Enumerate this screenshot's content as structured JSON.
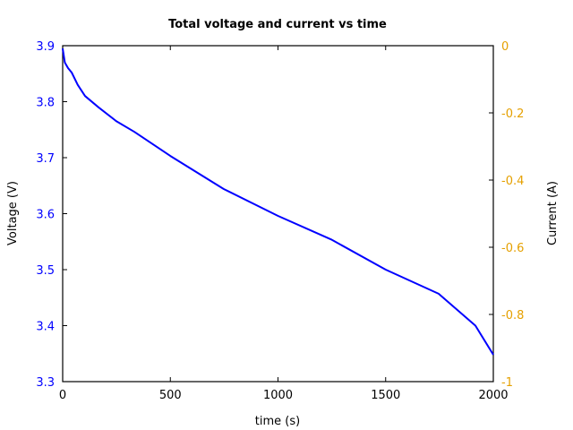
{
  "chart_data": {
    "type": "line",
    "title": "Total voltage and current vs time",
    "xlabel": "time (s)",
    "ylabel": "Voltage (V)",
    "ylabel_right": "Current (A)",
    "xlim": [
      0,
      2000
    ],
    "ylim": [
      3.3,
      3.9
    ],
    "ylim_right": [
      -1,
      0
    ],
    "x_ticks": [
      "0",
      "500",
      "1000",
      "1500",
      "2000"
    ],
    "y_ticks": [
      "3.3",
      "3.4",
      "3.5",
      "3.6",
      "3.7",
      "3.8",
      "3.9"
    ],
    "y_ticks_right": [
      "-1",
      "-0.8",
      "-0.6",
      "-0.4",
      "-0.2",
      "0"
    ],
    "grid": false,
    "legend": null,
    "colors": {
      "voltage": "#0000ff",
      "current_axis": "#e5a000",
      "axes": "#000000"
    },
    "series": [
      {
        "name": "Voltage",
        "axis": "left",
        "color": "#0000ff",
        "x": [
          0,
          10,
          25,
          42,
          70,
          104,
          166,
          250,
          333,
          500,
          748,
          1000,
          1247,
          1500,
          1746,
          1917,
          2000
        ],
        "values": [
          3.895,
          3.87,
          3.86,
          3.852,
          3.83,
          3.81,
          3.79,
          3.765,
          3.746,
          3.703,
          3.644,
          3.596,
          3.554,
          3.5,
          3.457,
          3.4,
          3.348
        ]
      }
    ]
  }
}
